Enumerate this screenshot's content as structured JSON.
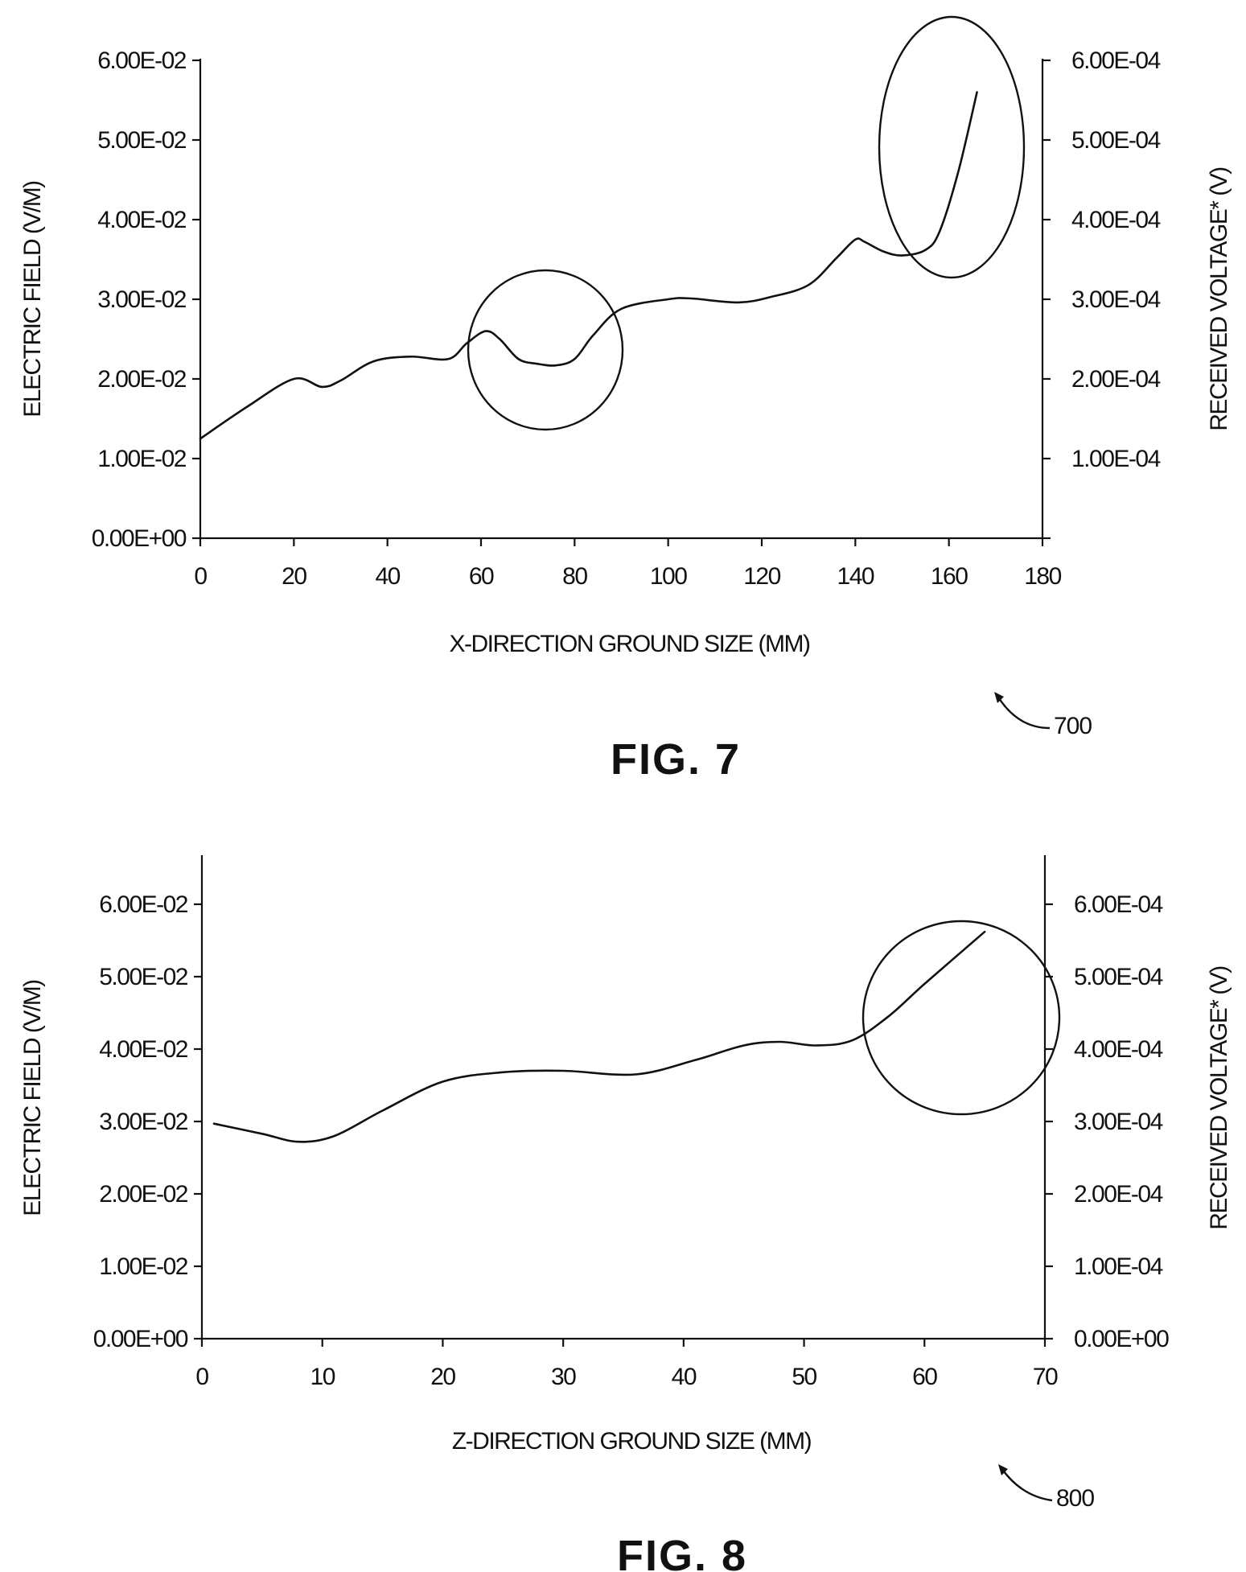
{
  "chart_data": [
    {
      "type": "line",
      "figure_label": "FIG. 7",
      "reference_number": "700",
      "xlabel": "X-DIRECTION GROUND SIZE (MM)",
      "ylabel": "ELECTRIC FIELD (V/M)",
      "y2label": "RECEIVED VOLTAGE* (V)",
      "xlim": [
        0,
        180
      ],
      "ylim": [
        0,
        0.06
      ],
      "xticks": [
        "0",
        "20",
        "40",
        "60",
        "80",
        "100",
        "120",
        "140",
        "160",
        "180"
      ],
      "yticks": [
        "0.00E+00",
        "1.00E-02",
        "2.00E-02",
        "3.00E-02",
        "4.00E-02",
        "5.00E-02",
        "6.00E-02"
      ],
      "y2ticks": [
        "",
        "1.00E-04",
        "2.00E-04",
        "3.00E-04",
        "4.00E-04",
        "5.00E-04",
        "6.00E-04"
      ],
      "grid": false,
      "series": [
        {
          "x": [
            0,
            10,
            20,
            26,
            30,
            37,
            45,
            53,
            57,
            61,
            64,
            68,
            72,
            76,
            80,
            84,
            90,
            100,
            105,
            115,
            122,
            130,
            136,
            140,
            142,
            146,
            150,
            155,
            158,
            162,
            166
          ],
          "y": [
            0.0125,
            0.0165,
            0.02,
            0.019,
            0.0198,
            0.0222,
            0.0228,
            0.0225,
            0.0245,
            0.026,
            0.025,
            0.0225,
            0.0219,
            0.0217,
            0.0225,
            0.0255,
            0.0288,
            0.03,
            0.0301,
            0.0296,
            0.0303,
            0.0318,
            0.0352,
            0.0375,
            0.0372,
            0.036,
            0.0355,
            0.0362,
            0.0385,
            0.046,
            0.056
          ]
        }
      ],
      "annotations": [
        {
          "shape": "circle",
          "x": 74,
          "y": 0.024
        },
        {
          "shape": "ellipse",
          "x": 160,
          "y": 0.049
        }
      ]
    },
    {
      "type": "line",
      "figure_label": "FIG. 8",
      "reference_number": "800",
      "xlabel": "Z-DIRECTION GROUND SIZE (MM)",
      "ylabel": "ELECTRIC FIELD (V/M)",
      "y2label": "RECEIVED VOLTAGE* (V)",
      "xlim": [
        0,
        70
      ],
      "ylim": [
        0,
        0.065
      ],
      "xticks": [
        "0",
        "10",
        "20",
        "30",
        "40",
        "50",
        "60",
        "70"
      ],
      "yticks": [
        "0.00E+00",
        "1.00E-02",
        "2.00E-02",
        "3.00E-02",
        "4.00E-02",
        "5.00E-02",
        "6.00E-02"
      ],
      "y2ticks": [
        "0.00E+00",
        "1.00E-04",
        "2.00E-04",
        "3.00E-04",
        "4.00E-04",
        "5.00E-04",
        "6.00E-04"
      ],
      "grid": false,
      "series": [
        {
          "x": [
            1,
            5,
            8,
            11,
            15,
            20,
            25,
            30,
            36,
            41,
            45,
            48,
            51,
            54,
            57,
            60,
            65
          ],
          "y": [
            0.0297,
            0.0283,
            0.0272,
            0.028,
            0.0315,
            0.0355,
            0.0368,
            0.037,
            0.0365,
            0.0385,
            0.0405,
            0.041,
            0.0405,
            0.0412,
            0.0445,
            0.049,
            0.0562
          ]
        }
      ],
      "annotations": [
        {
          "shape": "circle",
          "x": 63,
          "y": 0.052
        }
      ]
    }
  ]
}
